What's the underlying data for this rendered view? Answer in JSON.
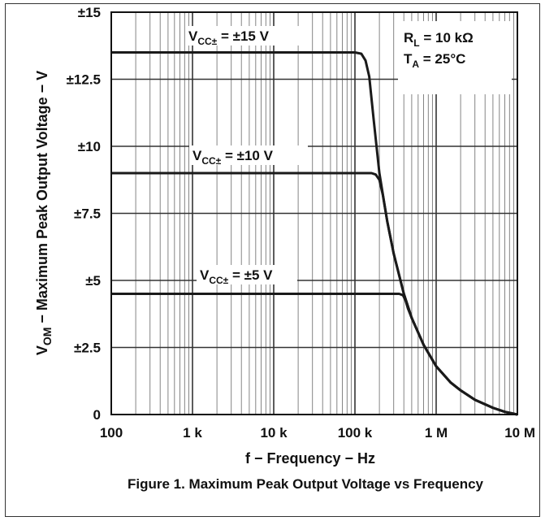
{
  "chart_data": {
    "type": "line",
    "x_scale": "log",
    "xlim": [
      100,
      10000000
    ],
    "ylim": [
      0,
      15
    ],
    "grid": true,
    "x_ticks": [
      100,
      1000,
      10000,
      100000,
      1000000,
      10000000
    ],
    "x_tick_labels": [
      "100",
      "1 k",
      "10 k",
      "100 k",
      "1 M",
      "10 M"
    ],
    "y_ticks": [
      0,
      2.5,
      5,
      7.5,
      10,
      12.5,
      15
    ],
    "y_tick_labels": [
      "0",
      "±2.5",
      "±5",
      "±7.5",
      "±10",
      "±12.5",
      "±15"
    ],
    "xlabel": "f − Frequency − Hz",
    "ylabel": {
      "main": "V",
      "sub": "OM",
      "rest": " − Maximum Peak Output Voltage − V"
    },
    "conditions": [
      {
        "main": "R",
        "sub": "L",
        "rest": " = 10 kΩ"
      },
      {
        "main": "T",
        "sub": "A",
        "rest": " = 25°C"
      }
    ],
    "series": [
      {
        "label": {
          "main": "V",
          "sub": "CC±",
          "rest": " = ±15 V"
        },
        "x": [
          100,
          100000,
          120000,
          135000,
          150000,
          170000,
          200000,
          250000,
          300000,
          400000,
          500000,
          700000,
          1000000,
          1500000,
          2000000,
          3000000,
          5000000,
          7000000,
          10000000
        ],
        "y": [
          13.5,
          13.5,
          13.45,
          13.2,
          12.6,
          11.0,
          9.0,
          7.2,
          6.0,
          4.5,
          3.6,
          2.6,
          1.8,
          1.2,
          0.9,
          0.55,
          0.25,
          0.1,
          0.0
        ]
      },
      {
        "label": {
          "main": "V",
          "sub": "CC±",
          "rest": " = ±10 V"
        },
        "x": [
          100,
          160000,
          180000,
          200000,
          220000,
          250000,
          300000,
          400000,
          500000,
          700000,
          1000000,
          1500000,
          2000000,
          3000000,
          5000000,
          7000000,
          10000000
        ],
        "y": [
          9.0,
          9.0,
          8.95,
          8.75,
          8.2,
          7.2,
          6.0,
          4.5,
          3.6,
          2.6,
          1.8,
          1.2,
          0.9,
          0.55,
          0.25,
          0.1,
          0.0
        ]
      },
      {
        "label": {
          "main": "V",
          "sub": "CC±",
          "rest": " = ±5 V"
        },
        "x": [
          100,
          350000,
          390000,
          420000,
          450000,
          500000,
          700000,
          1000000,
          1500000,
          2000000,
          3000000,
          5000000,
          7000000,
          10000000
        ],
        "y": [
          4.5,
          4.5,
          4.45,
          4.25,
          3.95,
          3.6,
          2.6,
          1.8,
          1.2,
          0.9,
          0.55,
          0.25,
          0.1,
          0.0
        ]
      }
    ]
  },
  "caption": "Figure 1. Maximum Peak Output Voltage vs Frequency",
  "colors": {
    "line": "#1a1a1a",
    "grid": "#777777",
    "frame": "#111111"
  }
}
